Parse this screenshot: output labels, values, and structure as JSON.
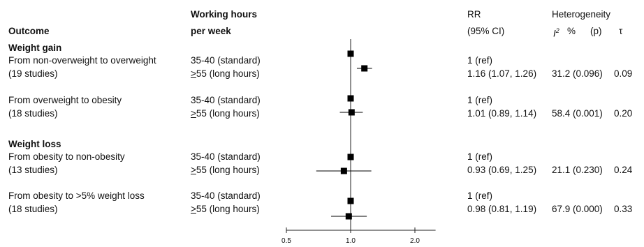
{
  "headers": {
    "outcome": "Outcome",
    "hours_line1": "Working hours",
    "hours_line2": "per week",
    "rr_line1": "RR",
    "rr_line2": "(95% CI)",
    "het_line1": "Heterogeneity",
    "het_i2": "I",
    "het_i2_sup": "2",
    "het_pct": "%",
    "het_p": "(p)",
    "het_tau": "τ"
  },
  "sections": [
    {
      "title": "Weight gain",
      "groups": [
        {
          "label1": "From non-overweight to overweight",
          "label2": "(19 studies)",
          "ref_hours": "35-40 (standard)",
          "long_hours_symbol": ">",
          "long_hours_rest": "55 (long hours)",
          "ref_rr": "1 (ref)",
          "rr_ci": "1.16 (1.07, 1.26)",
          "i2_p": "31.2 (0.096)",
          "tau": "0.09"
        },
        {
          "label1": "From overweight to obesity",
          "label2": "(18 studies)",
          "ref_hours": "35-40 (standard)",
          "long_hours_symbol": ">",
          "long_hours_rest": "55 (long hours)",
          "ref_rr": "1 (ref)",
          "rr_ci": "1.01 (0.89, 1.14)",
          "i2_p": "58.4 (0.001)",
          "tau": "0.20"
        }
      ]
    },
    {
      "title": "Weight loss",
      "groups": [
        {
          "label1": "From obesity to non-obesity",
          "label2": "(13 studies)",
          "ref_hours": "35-40 (standard)",
          "long_hours_symbol": ">",
          "long_hours_rest": "55 (long hours)",
          "ref_rr": "1 (ref)",
          "rr_ci": "0.93 (0.69, 1.25)",
          "i2_p": "21.1 (0.230)",
          "tau": "0.24"
        },
        {
          "label1": "From obesity to >5% weight loss",
          "label2": "(18 studies)",
          "ref_hours": "35-40 (standard)",
          "long_hours_symbol": ">",
          "long_hours_rest": "55 (long hours)",
          "ref_rr": "1 (ref)",
          "rr_ci": "0.98 (0.81, 1.19)",
          "i2_p": "67.9 (0.000)",
          "tau": "0.33"
        }
      ]
    }
  ],
  "chart_data": {
    "type": "forest",
    "scale": "log",
    "xlim": [
      0.5,
      2.5
    ],
    "ticks": [
      0.5,
      1.0,
      2.0
    ],
    "tick_labels": [
      "0.5",
      "1.0",
      "2.0"
    ],
    "reference_line": 1.0,
    "rows": [
      {
        "outcome": "From non-overweight to overweight",
        "hours": "35-40 (standard)",
        "rr": 1.0,
        "lo": null,
        "hi": null
      },
      {
        "outcome": "From non-overweight to overweight",
        "hours": ">55 (long hours)",
        "rr": 1.16,
        "lo": 1.07,
        "hi": 1.26
      },
      {
        "outcome": "From overweight to obesity",
        "hours": "35-40 (standard)",
        "rr": 1.0,
        "lo": null,
        "hi": null
      },
      {
        "outcome": "From overweight to obesity",
        "hours": ">55 (long hours)",
        "rr": 1.01,
        "lo": 0.89,
        "hi": 1.14
      },
      {
        "outcome": "From obesity to non-obesity",
        "hours": "35-40 (standard)",
        "rr": 1.0,
        "lo": null,
        "hi": null
      },
      {
        "outcome": "From obesity to non-obesity",
        "hours": ">55 (long hours)",
        "rr": 0.93,
        "lo": 0.69,
        "hi": 1.25
      },
      {
        "outcome": "From obesity to >5% weight loss",
        "hours": "35-40 (standard)",
        "rr": 1.0,
        "lo": null,
        "hi": null
      },
      {
        "outcome": "From obesity to >5% weight loss",
        "hours": ">55 (long hours)",
        "rr": 0.98,
        "lo": 0.81,
        "hi": 1.19
      }
    ],
    "colors": {
      "marker": "#000000",
      "axis": "#222222"
    }
  }
}
